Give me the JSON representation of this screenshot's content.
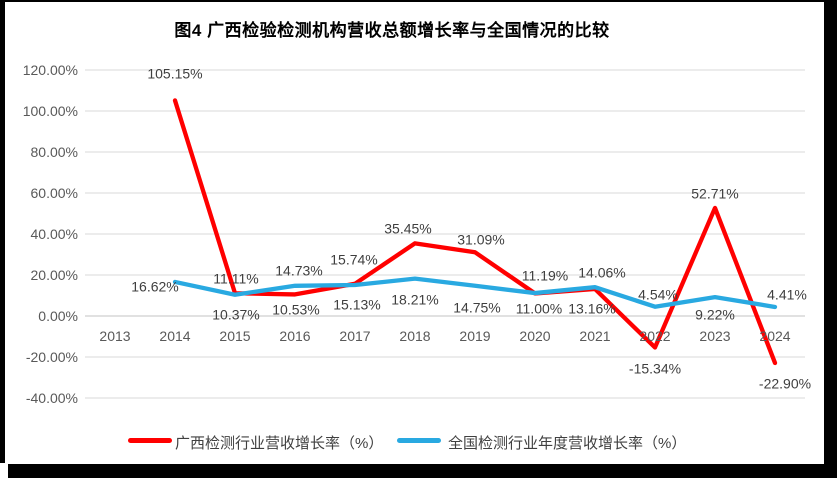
{
  "figure": {
    "title": "图4 广西检验检测机构营收总额增长率与全国情况的比较"
  },
  "chart_data": {
    "type": "line",
    "title": "图4 广西检验检测机构营收总额增长率与全国情况的比较",
    "categories": [
      "2013",
      "2014",
      "2015",
      "2016",
      "2017",
      "2018",
      "2019",
      "2020",
      "2021",
      "2022",
      "2023",
      "2024"
    ],
    "series": [
      {
        "name": "广西检测行业营收增长率（%）",
        "color": "#ff0000",
        "values": [
          null,
          105.15,
          11.11,
          10.53,
          15.74,
          35.45,
          31.09,
          11.0,
          13.16,
          -15.34,
          52.71,
          -22.9
        ],
        "point_labels": [
          "",
          "105.15%",
          "11.11%",
          "10.53%",
          "15.74%",
          "35.45%",
          "31.09%",
          "11.00%",
          "13.16%",
          "-15.34%",
          "52.71%",
          "-22.90%"
        ],
        "label_offsets": [
          null,
          [
            0,
            -26
          ],
          [
            1,
            -14
          ],
          [
            1,
            16
          ],
          [
            -1,
            -24
          ],
          [
            -7,
            -14
          ],
          [
            6,
            -12
          ],
          [
            4,
            16
          ],
          [
            -3,
            20
          ],
          [
            0,
            22
          ],
          [
            0,
            -14
          ],
          [
            10,
            21
          ]
        ]
      },
      {
        "name": "全国检测行业年度营收增长率（%）",
        "color": "#29a9e1",
        "values": [
          null,
          16.62,
          10.37,
          14.73,
          15.13,
          18.21,
          14.75,
          11.19,
          14.06,
          4.54,
          9.22,
          4.41
        ],
        "point_labels": [
          "",
          "16.62%",
          "10.37%",
          "14.73%",
          "15.13%",
          "18.21%",
          "14.75%",
          "11.19%",
          "14.06%",
          "4.54%",
          "9.22%",
          "4.41%"
        ],
        "label_offsets": [
          null,
          [
            -20,
            5
          ],
          [
            1,
            20
          ],
          [
            4,
            -15
          ],
          [
            2,
            20
          ],
          [
            0,
            21
          ],
          [
            2,
            22
          ],
          [
            10,
            -17
          ],
          [
            7,
            -14
          ],
          [
            3,
            -12
          ],
          [
            0,
            18
          ],
          [
            12,
            -12
          ]
        ]
      }
    ],
    "y_axis": {
      "min": -40,
      "max": 120,
      "step": 20,
      "ticks": [
        {
          "value": 120,
          "label": "120.00%"
        },
        {
          "value": 100,
          "label": "100.00%"
        },
        {
          "value": 80,
          "label": "80.00%"
        },
        {
          "value": 60,
          "label": "60.00%"
        },
        {
          "value": 40,
          "label": "40.00%"
        },
        {
          "value": 20,
          "label": "20.00%"
        },
        {
          "value": 0,
          "label": "0.00%"
        },
        {
          "value": -20,
          "label": "-20.00%"
        },
        {
          "value": -40,
          "label": "-40.00%"
        }
      ]
    },
    "grid": true,
    "legend_position": "bottom",
    "colors": {
      "gridline": "#d9d9d9",
      "zero_line": "#c3c3c3",
      "axis_text": "#595959",
      "label_text": "#3f3f3f"
    }
  }
}
